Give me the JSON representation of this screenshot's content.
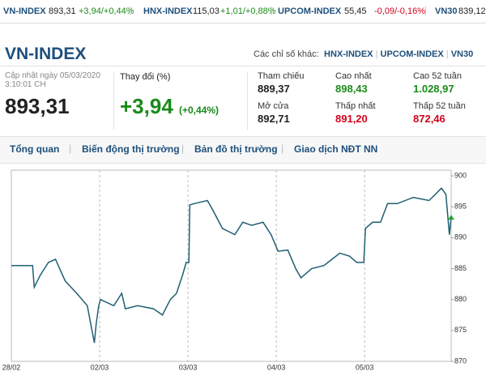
{
  "ticker": [
    {
      "name": "VN-INDEX",
      "value": "893,31",
      "change": "+3,94/+0,44%",
      "color": "#1a8a1a"
    },
    {
      "name": "HNX-INDEX",
      "value": "115,03",
      "change": "+1,01/+0,88%",
      "color": "#1a8a1a"
    },
    {
      "name": "UPCOM-INDEX",
      "value": "55,45",
      "change": "-0,09/-0,16%",
      "color": "#d0021b"
    },
    {
      "name": "VN30",
      "value": "839,12"
    }
  ],
  "header": {
    "title": "VN-INDEX",
    "other_label": "Các chỉ số khác:",
    "links": [
      "HNX-INDEX",
      "UPCOM-INDEX",
      "VN30"
    ]
  },
  "summary": {
    "updated": "Cập nhật ngày 05/03/2020",
    "time": "3:10:01 CH",
    "price": "893,31",
    "change_label": "Thay đổi (%)",
    "change": "+3,94",
    "change_pct": "(+0,44%)",
    "stats": [
      {
        "label": "Tham chiếu",
        "value": "889,37",
        "color": "#222222"
      },
      {
        "label": "Cao nhất",
        "value": "898,43",
        "color": "#1a8a1a"
      },
      {
        "label": "Cao 52 tuần",
        "value": "1.028,97",
        "color": "#1a8a1a"
      },
      {
        "label": "Mở cửa",
        "value": "892,71",
        "color": "#222222"
      },
      {
        "label": "Thấp nhất",
        "value": "891,20",
        "color": "#d0021b"
      },
      {
        "label": "Thấp 52 tuần",
        "value": "872,46",
        "color": "#d0021b"
      }
    ]
  },
  "tabs": [
    "Tổng quan",
    "Biến động thị trường",
    "Bản đồ thị trường",
    "Giao dịch NĐT NN"
  ],
  "chart_data": {
    "type": "line",
    "color": "#1f5f73",
    "x": [
      0,
      0.24,
      0.26,
      0.33,
      0.42,
      0.5,
      0.61,
      0.74,
      0.86,
      0.9,
      0.94,
      0.96,
      0.99,
      1.01,
      1.16,
      1.25,
      1.29,
      1.43,
      1.61,
      1.71,
      1.8,
      1.87,
      1.94,
      1.98,
      2.01,
      2.02,
      2.07,
      2.22,
      2.28,
      2.39,
      2.53,
      2.62,
      2.72,
      2.85,
      2.94,
      3.0,
      3.02,
      3.13,
      3.22,
      3.28,
      3.4,
      3.54,
      3.63,
      3.72,
      3.83,
      3.91,
      3.99,
      4.01,
      4.09,
      4.18,
      4.26,
      4.37,
      4.55,
      4.73,
      4.87,
      4.92,
      4.96,
      4.98
    ],
    "values": [
      885.5,
      885.5,
      882,
      884,
      886,
      886.5,
      883,
      881,
      879,
      876,
      873,
      876,
      879,
      880,
      879,
      881,
      878.5,
      879,
      878.5,
      877.5,
      880,
      881,
      884,
      886,
      886,
      895.3,
      895.5,
      896,
      894.5,
      891.5,
      890.5,
      892.5,
      892,
      892.5,
      890.5,
      888.5,
      887.8,
      888,
      885,
      883.5,
      885,
      885.5,
      886.5,
      887.5,
      887,
      886,
      886,
      891.5,
      892.5,
      892.5,
      895.5,
      895.5,
      896.5,
      896,
      898,
      897,
      890.5,
      893.3
    ],
    "xlim": [
      0,
      4.98
    ],
    "ylim": [
      870,
      900
    ],
    "xticks": [
      {
        "value": 0,
        "label": "28/02"
      },
      {
        "value": 1,
        "label": "02/03"
      },
      {
        "value": 2,
        "label": "03/03"
      },
      {
        "value": 3,
        "label": "04/03"
      },
      {
        "value": 4,
        "label": "05/03"
      }
    ],
    "yticks": [
      870,
      875,
      880,
      885,
      890,
      895,
      900
    ]
  }
}
